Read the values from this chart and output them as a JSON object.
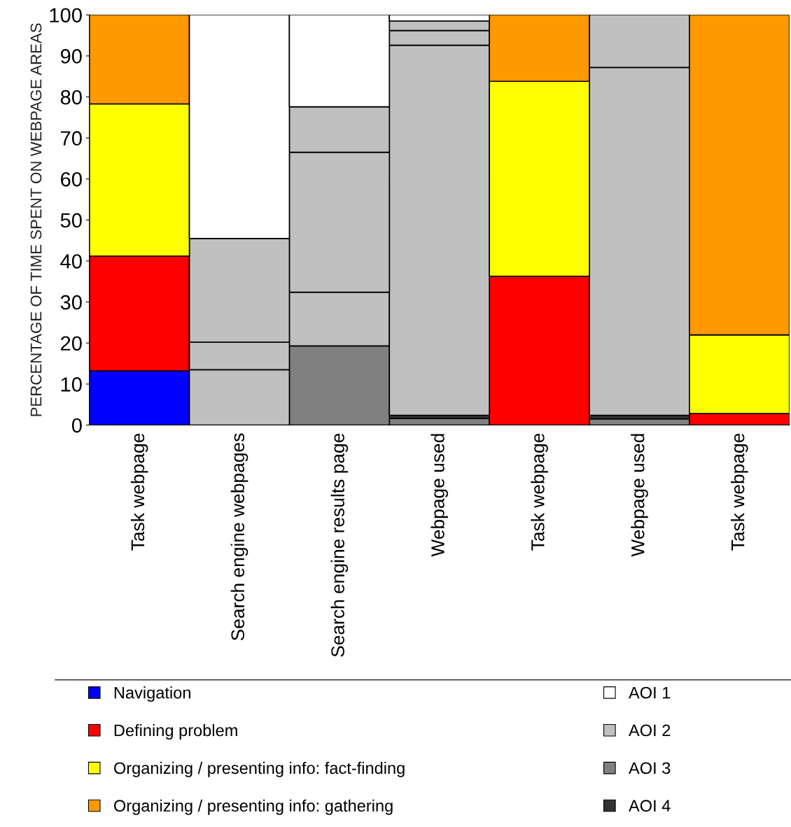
{
  "chart_data": {
    "type": "bar",
    "stacked": true,
    "ylabel": "PERCENTAGE OF TIME SPENT ON WEBPAGE AREAS",
    "categories": [
      "Task webpage",
      "Search engine webpages",
      "Search engine results page",
      "Webpage used",
      "Task webpage",
      "Webpage used",
      "Task webpage"
    ],
    "ylim": [
      0,
      100
    ],
    "yticks": [
      0,
      10,
      20,
      30,
      40,
      50,
      60,
      70,
      80,
      90,
      100
    ],
    "grid": false,
    "legend": "bottom",
    "series": [
      {
        "name": "Navigation",
        "color": "#0000ff",
        "values": [
          13.2,
          null,
          null,
          null,
          null,
          null,
          null
        ]
      },
      {
        "name": "AOI 3",
        "color": "#808080",
        "values": [
          null,
          null,
          null,
          1.6,
          null,
          1.5,
          null
        ]
      },
      {
        "name": "AOI 4",
        "color": "#333333",
        "values": [
          null,
          null,
          null,
          0.8,
          null,
          0.9,
          null
        ]
      },
      {
        "color": "#808080",
        "values": [
          null,
          null,
          19.3,
          null,
          null,
          null,
          null
        ]
      },
      {
        "name": "Defining problem",
        "color": "#ff0000",
        "values": [
          28.0,
          null,
          null,
          null,
          36.3,
          null,
          2.8
        ]
      },
      {
        "name": "AOI 2",
        "color": "#c0c0c0",
        "values": [
          null,
          13.5,
          13.1,
          90.2,
          null,
          84.8,
          null
        ]
      },
      {
        "color": "#c0c0c0",
        "values": [
          null,
          6.7,
          34.1,
          3.6,
          null,
          12.8,
          null
        ]
      },
      {
        "color": "#c0c0c0",
        "values": [
          null,
          25.3,
          11.1,
          2.3,
          null,
          null,
          null
        ]
      },
      {
        "name": "Organizing / presenting info: fact-finding",
        "color": "#ffff00",
        "values": [
          37.1,
          null,
          null,
          null,
          47.5,
          null,
          19.2
        ]
      },
      {
        "name": "Organizing / presenting info: gathering",
        "color": "#ff9900",
        "values": [
          21.7,
          null,
          null,
          null,
          16.2,
          null,
          78.0
        ]
      },
      {
        "name": "AOI 1",
        "color": "#ffffff",
        "values": [
          null,
          54.5,
          22.4,
          1.5,
          null,
          null,
          null
        ]
      }
    ]
  }
}
